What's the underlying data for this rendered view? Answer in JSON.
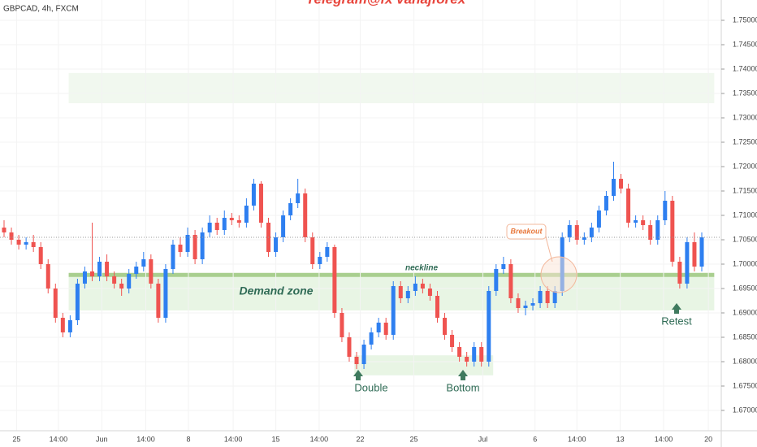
{
  "chart_data": {
    "type": "candlestick",
    "title": "GBPCAD, 4h, FXCM",
    "watermark": "Telegram@fx vanajforex",
    "up_color": "#2e7ff0",
    "down_color": "#ef5350",
    "ylim": [
      1.665833,
      1.754167
    ],
    "yticks": [
      {
        "value": 1.67,
        "label": "1.67000"
      },
      {
        "value": 1.675,
        "label": "1.67500"
      },
      {
        "value": 1.68,
        "label": "1.68000"
      },
      {
        "value": 1.685,
        "label": "1.68500"
      },
      {
        "value": 1.69,
        "label": "1.69000"
      },
      {
        "value": 1.695,
        "label": "1.69500"
      },
      {
        "value": 1.7,
        "label": "1.70000"
      },
      {
        "value": 1.705,
        "label": "1.70500"
      },
      {
        "value": 1.71,
        "label": "1.71000"
      },
      {
        "value": 1.715,
        "label": "1.71500"
      },
      {
        "value": 1.72,
        "label": "1.72000"
      },
      {
        "value": 1.725,
        "label": "1.72500"
      },
      {
        "value": 1.73,
        "label": "1.73000"
      },
      {
        "value": 1.735,
        "label": "1.73500"
      },
      {
        "value": 1.74,
        "label": "1.74000"
      },
      {
        "value": 1.745,
        "label": "1.74500"
      },
      {
        "value": 1.75,
        "label": "1.75000"
      }
    ],
    "xlim": [
      0,
      95
    ],
    "xticks": [
      {
        "value": 1.7,
        "label": "25"
      },
      {
        "value": 7.4,
        "label": "14:00"
      },
      {
        "value": 13.3,
        "label": "Jun"
      },
      {
        "value": 19.3,
        "label": "14:00"
      },
      {
        "value": 25.1,
        "label": "8"
      },
      {
        "value": 31.2,
        "label": "14:00"
      },
      {
        "value": 37,
        "label": "15"
      },
      {
        "value": 42.9,
        "label": "14:00"
      },
      {
        "value": 48.5,
        "label": "22"
      },
      {
        "value": 55.8,
        "label": "25"
      },
      {
        "value": 65.2,
        "label": "Jul"
      },
      {
        "value": 72.3,
        "label": "6"
      },
      {
        "value": 78,
        "label": "14:00"
      },
      {
        "value": 83.9,
        "label": "13"
      },
      {
        "value": 89.8,
        "label": "14:00"
      },
      {
        "value": 95.9,
        "label": "20"
      }
    ],
    "zones": [
      {
        "name": "Demand zone",
        "low": 1.6905,
        "high": 1.6975,
        "start": 8.8,
        "end": 96.7,
        "color": "#e8f5e4"
      },
      {
        "low": 1.733,
        "high": 1.7392,
        "start": 8.8,
        "end": 96.7,
        "color": "#f1f8ef"
      },
      {
        "low": 1.6772,
        "high": 1.6813,
        "start": 47.7,
        "end": 66.6,
        "color": "#e8f5e4"
      }
    ],
    "neckline": {
      "name": "neckline",
      "value": 1.6978,
      "start": 8.8,
      "end": 96.7,
      "color": "#a9cf8f"
    },
    "annotations": [
      "Breakout",
      "Double",
      "Bottom",
      "Retest"
    ],
    "ohlc": [
      [
        1.7075,
        1.709,
        1.7055,
        1.7065
      ],
      [
        1.7065,
        1.7075,
        1.704,
        1.705
      ],
      [
        1.705,
        1.706,
        1.703,
        1.704
      ],
      [
        1.704,
        1.7055,
        1.703,
        1.7045
      ],
      [
        1.7045,
        1.706,
        1.7025,
        1.7035
      ],
      [
        1.7035,
        1.7045,
        1.699,
        1.7
      ],
      [
        1.7,
        1.701,
        1.694,
        1.695
      ],
      [
        1.695,
        1.696,
        1.688,
        1.689
      ],
      [
        1.689,
        1.69,
        1.685,
        1.686
      ],
      [
        1.686,
        1.6895,
        1.685,
        1.6885
      ],
      [
        1.6885,
        1.697,
        1.6875,
        1.696
      ],
      [
        1.696,
        1.6995,
        1.695,
        1.6985
      ],
      [
        1.6985,
        1.7085,
        1.6965,
        1.6975
      ],
      [
        1.6975,
        1.7015,
        1.6965,
        1.7005
      ],
      [
        1.7005,
        1.702,
        1.6965,
        1.6975
      ],
      [
        1.6975,
        1.6985,
        1.695,
        1.696
      ],
      [
        1.696,
        1.697,
        1.6935,
        1.695
      ],
      [
        1.695,
        1.699,
        1.694,
        1.698
      ],
      [
        1.698,
        1.7005,
        1.697,
        1.6995
      ],
      [
        1.6995,
        1.7025,
        1.6985,
        1.701
      ],
      [
        1.701,
        1.702,
        1.695,
        1.696
      ],
      [
        1.696,
        1.697,
        1.688,
        1.689
      ],
      [
        1.689,
        1.7,
        1.688,
        1.699
      ],
      [
        1.699,
        1.705,
        1.698,
        1.704
      ],
      [
        1.704,
        1.7055,
        1.7015,
        1.7025
      ],
      [
        1.7025,
        1.7075,
        1.7015,
        1.706
      ],
      [
        1.706,
        1.707,
        1.7,
        1.701
      ],
      [
        1.701,
        1.7075,
        1.7,
        1.7065
      ],
      [
        1.7065,
        1.71,
        1.7055,
        1.7085
      ],
      [
        1.7085,
        1.7095,
        1.706,
        1.707
      ],
      [
        1.707,
        1.711,
        1.706,
        1.7095
      ],
      [
        1.7095,
        1.7105,
        1.708,
        1.709
      ],
      [
        1.709,
        1.71,
        1.7075,
        1.7085
      ],
      [
        1.7085,
        1.7135,
        1.7075,
        1.712
      ],
      [
        1.712,
        1.7175,
        1.711,
        1.7165
      ],
      [
        1.7165,
        1.717,
        1.7075,
        1.7085
      ],
      [
        1.7085,
        1.7095,
        1.7015,
        1.7025
      ],
      [
        1.7025,
        1.7065,
        1.7015,
        1.7055
      ],
      [
        1.7055,
        1.711,
        1.7045,
        1.71
      ],
      [
        1.71,
        1.7135,
        1.709,
        1.7125
      ],
      [
        1.7125,
        1.7175,
        1.7115,
        1.7145
      ],
      [
        1.7145,
        1.7155,
        1.7045,
        1.7055
      ],
      [
        1.7055,
        1.7065,
        1.699,
        1.7
      ],
      [
        1.7,
        1.7025,
        1.699,
        1.7015
      ],
      [
        1.7015,
        1.7045,
        1.7005,
        1.7035
      ],
      [
        1.7035,
        1.704,
        1.689,
        1.69
      ],
      [
        1.69,
        1.691,
        1.684,
        1.685
      ],
      [
        1.685,
        1.686,
        1.68,
        1.681
      ],
      [
        1.681,
        1.682,
        1.6785,
        1.6795
      ],
      [
        1.6795,
        1.6845,
        1.6785,
        1.6835
      ],
      [
        1.6835,
        1.687,
        1.6825,
        1.686
      ],
      [
        1.686,
        1.689,
        1.685,
        1.688
      ],
      [
        1.688,
        1.689,
        1.6845,
        1.6855
      ],
      [
        1.6855,
        1.6965,
        1.6845,
        1.6955
      ],
      [
        1.6955,
        1.6965,
        1.692,
        1.693
      ],
      [
        1.693,
        1.6955,
        1.692,
        1.6945
      ],
      [
        1.6945,
        1.6975,
        1.6935,
        1.696
      ],
      [
        1.696,
        1.697,
        1.694,
        1.695
      ],
      [
        1.695,
        1.696,
        1.6925,
        1.6935
      ],
      [
        1.6935,
        1.6945,
        1.688,
        1.689
      ],
      [
        1.689,
        1.69,
        1.6845,
        1.6855
      ],
      [
        1.6855,
        1.6865,
        1.682,
        1.683
      ],
      [
        1.683,
        1.684,
        1.68,
        1.681
      ],
      [
        1.681,
        1.682,
        1.679,
        1.68
      ],
      [
        1.68,
        1.684,
        1.679,
        1.683
      ],
      [
        1.683,
        1.684,
        1.679,
        1.68
      ],
      [
        1.68,
        1.6955,
        1.679,
        1.6945
      ],
      [
        1.6945,
        1.7,
        1.6935,
        1.699
      ],
      [
        1.699,
        1.7015,
        1.698,
        1.7
      ],
      [
        1.7,
        1.701,
        1.692,
        1.693
      ],
      [
        1.693,
        1.694,
        1.69,
        1.691
      ],
      [
        1.691,
        1.6925,
        1.6895,
        1.6915
      ],
      [
        1.6915,
        1.693,
        1.6905,
        1.692
      ],
      [
        1.692,
        1.6955,
        1.691,
        1.6945
      ],
      [
        1.6945,
        1.6955,
        1.691,
        1.692
      ],
      [
        1.692,
        1.6955,
        1.691,
        1.6945
      ],
      [
        1.6945,
        1.7065,
        1.6935,
        1.7055
      ],
      [
        1.7055,
        1.709,
        1.7045,
        1.708
      ],
      [
        1.708,
        1.709,
        1.704,
        1.705
      ],
      [
        1.705,
        1.7065,
        1.704,
        1.7055
      ],
      [
        1.7055,
        1.7085,
        1.7045,
        1.7075
      ],
      [
        1.7075,
        1.712,
        1.7065,
        1.711
      ],
      [
        1.711,
        1.715,
        1.71,
        1.714
      ],
      [
        1.714,
        1.721,
        1.713,
        1.7175
      ],
      [
        1.7175,
        1.7185,
        1.7145,
        1.7155
      ],
      [
        1.7155,
        1.7165,
        1.7075,
        1.7085
      ],
      [
        1.7085,
        1.71,
        1.7075,
        1.709
      ],
      [
        1.709,
        1.71,
        1.707,
        1.708
      ],
      [
        1.708,
        1.709,
        1.704,
        1.705
      ],
      [
        1.705,
        1.71,
        1.704,
        1.709
      ],
      [
        1.709,
        1.715,
        1.708,
        1.713
      ],
      [
        1.713,
        1.714,
        1.6995,
        1.7005
      ],
      [
        1.7005,
        1.7015,
        1.695,
        1.696
      ],
      [
        1.696,
        1.7055,
        1.695,
        1.7045
      ],
      [
        1.7045,
        1.7065,
        1.6985,
        1.6995
      ],
      [
        1.6995,
        1.7065,
        1.6985,
        1.7055
      ]
    ]
  }
}
